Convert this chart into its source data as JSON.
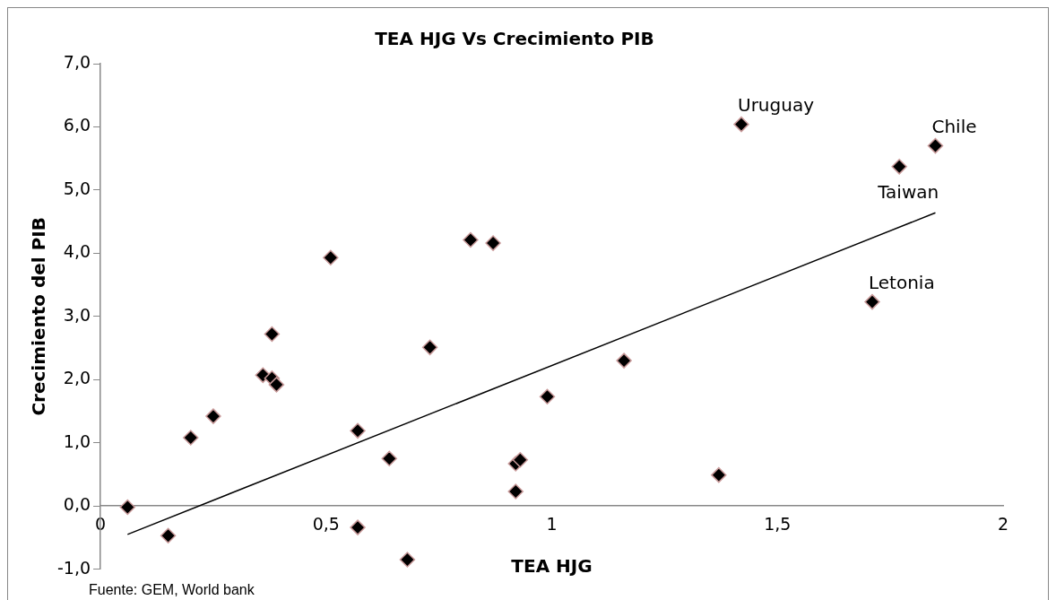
{
  "chart_data": {
    "type": "scatter",
    "title": "TEA HJG Vs Crecimiento PIB",
    "xlabel": "TEA HJG",
    "ylabel": "Crecimiento del PIB",
    "xlim": [
      0,
      2
    ],
    "xticks": [
      0,
      {
        "value": 0.5,
        "label": "0,5"
      },
      1,
      {
        "value": 1.5,
        "label": "1,5"
      },
      2
    ],
    "ylim": [
      -1,
      7
    ],
    "yticks": [
      {
        "value": -1,
        "label": "-1,0"
      },
      {
        "value": 0,
        "label": "0,0"
      },
      {
        "value": 1,
        "label": "1,0"
      },
      {
        "value": 2,
        "label": "2,0"
      },
      {
        "value": 3,
        "label": "3,0"
      },
      {
        "value": 4,
        "label": "4,0"
      },
      {
        "value": 5,
        "label": "5,0"
      },
      {
        "value": 6,
        "label": "6,0"
      },
      {
        "value": 7,
        "label": "7,0"
      }
    ],
    "grid": false,
    "legend": false,
    "marker": "diamond",
    "series": [
      {
        "color": "#000000",
        "x": [
          0.06,
          0.15,
          0.2,
          0.25,
          0.36,
          0.38,
          0.39,
          0.38,
          0.51,
          0.57,
          0.57,
          0.64,
          0.68,
          0.73,
          0.82,
          0.87,
          0.92,
          0.93,
          0.92,
          0.99,
          1.16,
          1.37,
          1.42,
          1.71,
          1.77,
          1.85
        ],
        "values": [
          -0.02,
          -0.47,
          1.08,
          1.42,
          2.07,
          2.02,
          1.92,
          2.72,
          3.93,
          1.19,
          -0.34,
          0.75,
          -0.85,
          2.51,
          4.21,
          4.16,
          0.67,
          0.73,
          0.23,
          1.73,
          2.3,
          0.49,
          6.04,
          3.23,
          5.37,
          5.7
        ]
      },
      {
        "type": "line",
        "color": "#000000",
        "marker": "none",
        "line_style": "solid",
        "x": [
          0.06,
          1.85
        ],
        "values": [
          -0.45,
          4.64
        ]
      }
    ],
    "annotations": [
      {
        "text": "Uruguay",
        "x": 1.42,
        "y": 6.04
      },
      {
        "text": "Chile",
        "x": 1.85,
        "y": 5.7
      },
      {
        "text": "Taiwan",
        "x": 1.77,
        "y": 5.37
      },
      {
        "text": "Letonia",
        "x": 1.71,
        "y": 3.23
      },
      "Fuente: GEM, World bank"
    ]
  }
}
